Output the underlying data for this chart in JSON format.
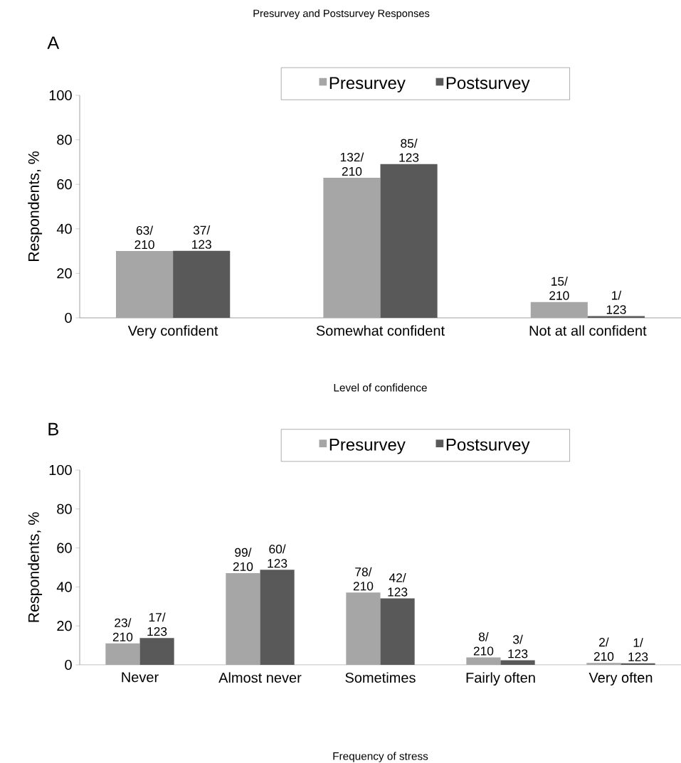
{
  "chart_data": [
    {
      "type": "bar",
      "title": "Presurvey and Postsurvey Responses",
      "subtitle": "A",
      "xlabel": "Level of confidence",
      "ylabel": "Respondents, %",
      "categories": [
        "Very confident",
        "Somewhat confident",
        "Not at all confident"
      ],
      "series": [
        {
          "name": "Presurvey",
          "color": "#a6a6a6",
          "values": [
            30.0,
            62.9,
            7.1
          ],
          "value_labels": [
            "63/ 210",
            "132/ 210",
            "15/ 210"
          ]
        },
        {
          "name": "Postsurvey",
          "color": "#595959",
          "values": [
            30.1,
            69.1,
            0.8
          ],
          "value_labels": [
            "37/ 123",
            "85/ 123",
            "1/ 123"
          ]
        }
      ],
      "ylim": [
        0,
        100
      ],
      "yticks": [
        0,
        20,
        40,
        60,
        80,
        100
      ],
      "legend": "top",
      "grid": false
    },
    {
      "type": "bar",
      "subtitle": "B",
      "xlabel": "Frequency of stress",
      "ylabel": "Respondents, %",
      "categories": [
        "Never",
        "Almost never",
        "Sometimes",
        "Fairly often",
        "Very often"
      ],
      "series": [
        {
          "name": "Presurvey",
          "color": "#a6a6a6",
          "values": [
            11.0,
            47.1,
            37.1,
            3.8,
            1.0
          ],
          "value_labels": [
            "23/ 210",
            "99/ 210",
            "78/ 210",
            "8/ 210",
            "2/ 210"
          ]
        },
        {
          "name": "Postsurvey",
          "color": "#595959",
          "values": [
            13.8,
            48.8,
            34.1,
            2.4,
            0.8
          ],
          "value_labels": [
            "17/ 123",
            "60/ 123",
            "42/ 123",
            "3/ 123",
            "1/ 123"
          ]
        }
      ],
      "ylim": [
        0,
        100
      ],
      "yticks": [
        0,
        20,
        40,
        60,
        80,
        100
      ],
      "legend": "top",
      "grid": false
    }
  ]
}
